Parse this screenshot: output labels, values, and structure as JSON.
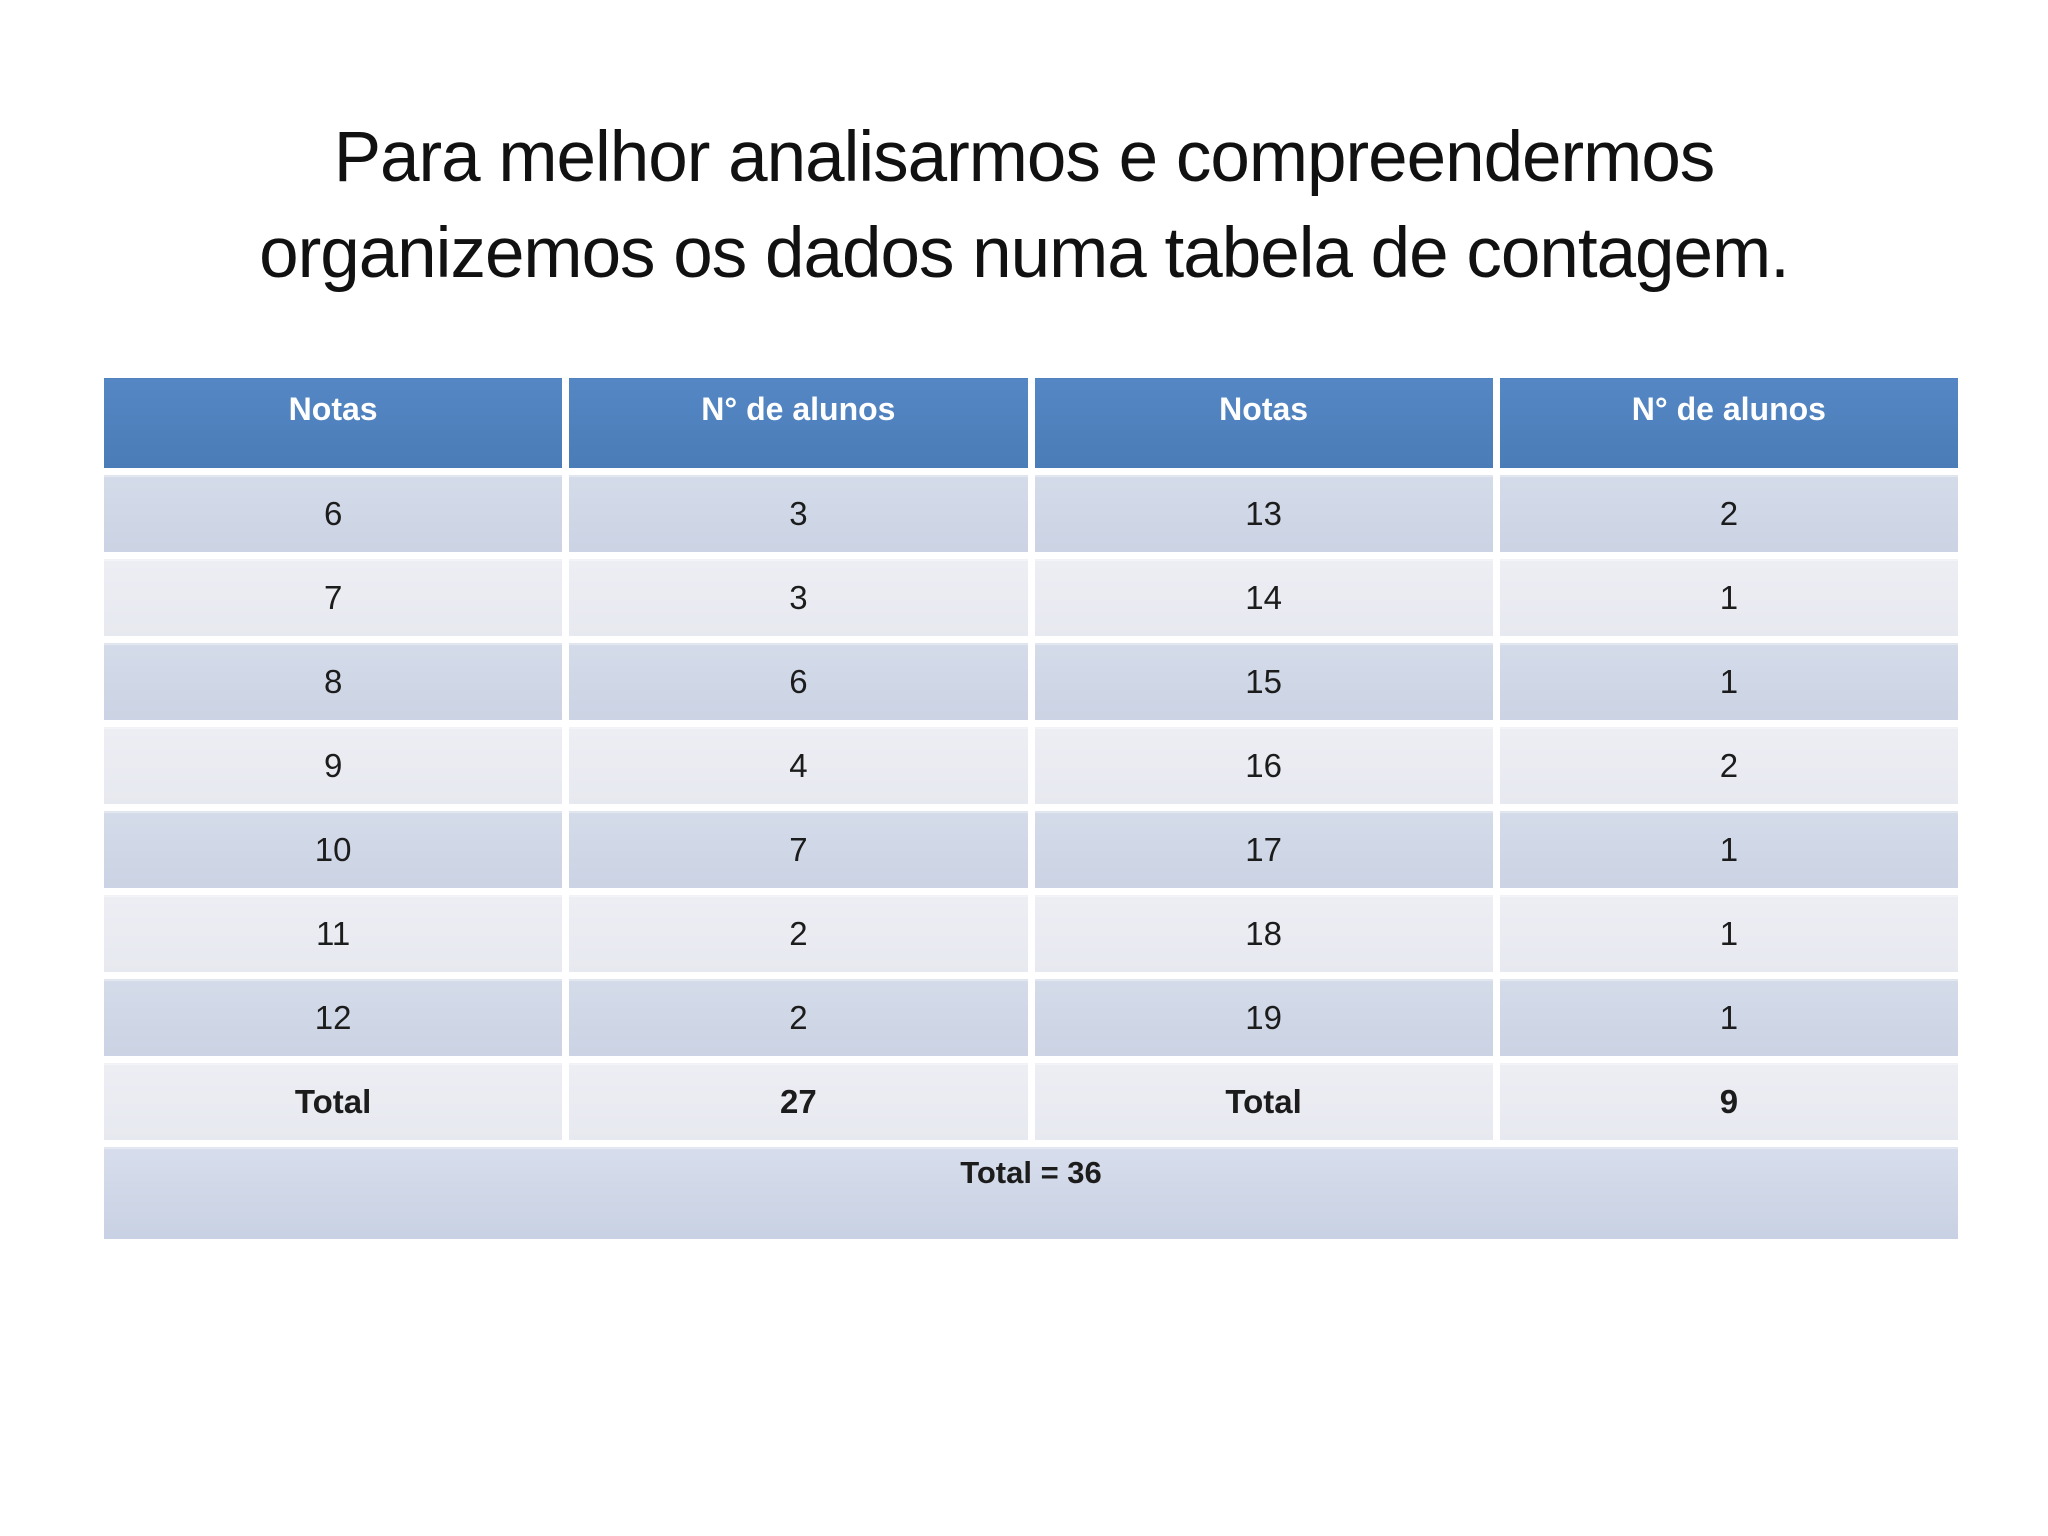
{
  "slide": {
    "title_line1": "Para melhor analisarmos e compreendermos",
    "title_line2": "organizemos os dados numa tabela de contagem."
  },
  "table": {
    "headers": [
      "Notas",
      "N° de alunos",
      "Notas",
      "N° de alunos"
    ],
    "rows": [
      [
        "6",
        "3",
        "13",
        "2"
      ],
      [
        "7",
        "3",
        "14",
        "1"
      ],
      [
        "8",
        "6",
        "15",
        "1"
      ],
      [
        "9",
        "4",
        "16",
        "2"
      ],
      [
        "10",
        "7",
        "17",
        "1"
      ],
      [
        "11",
        "2",
        "18",
        "1"
      ],
      [
        "12",
        "2",
        "19",
        "1"
      ]
    ],
    "total_row": [
      "Total",
      "27",
      "Total",
      "9"
    ],
    "grand_total": "Total = 36"
  },
  "colors": {
    "header_bg": "#4f81bd",
    "band_dark": "#cfd6e6",
    "band_light": "#e9ebf2",
    "grand_total_bg": "#ccd4e5",
    "header_text": "#ffffff",
    "body_text": "#1c1c1c"
  }
}
